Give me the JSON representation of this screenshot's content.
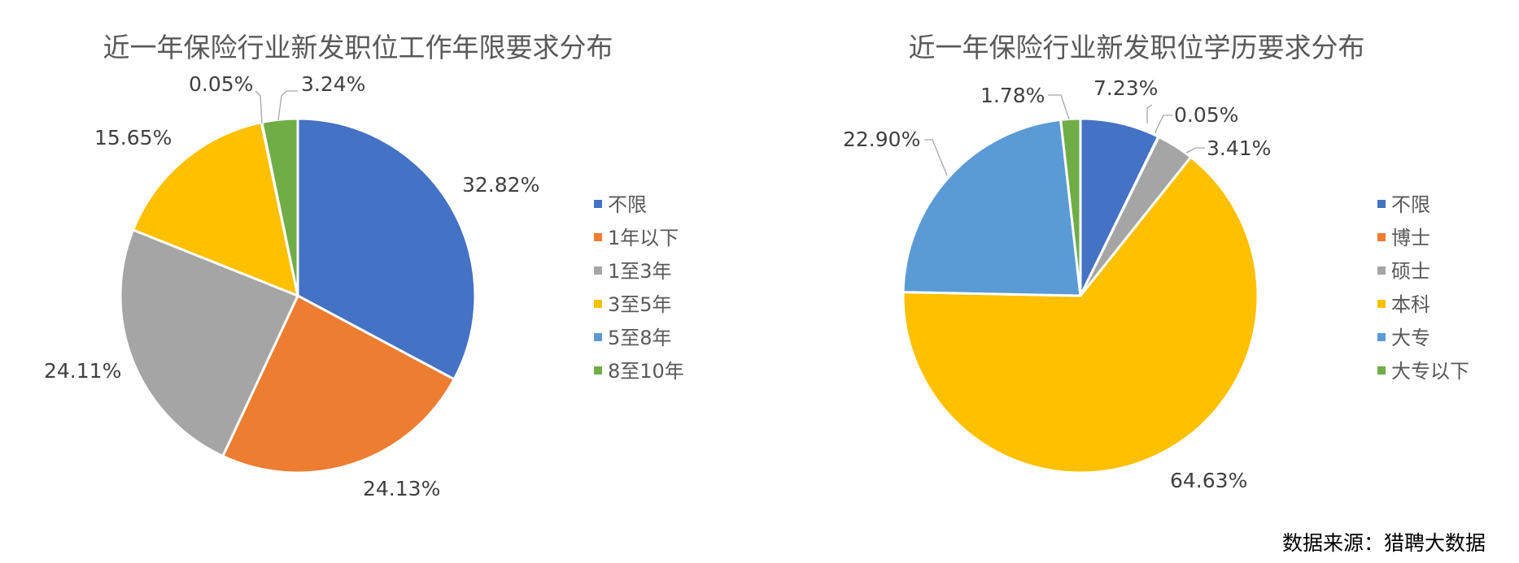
{
  "chart_data": [
    {
      "type": "pie",
      "title": "近一年保险行业新发职位工作年限要求分布",
      "categories": [
        "不限",
        "1年以下",
        "1至3年",
        "3至5年",
        "5至8年",
        "8至10年"
      ],
      "values": [
        32.82,
        24.13,
        24.11,
        15.65,
        0.05,
        3.24
      ],
      "data_labels": [
        "32.82%",
        "24.13%",
        "24.11%",
        "15.65%",
        "0.05%",
        "3.24%"
      ],
      "colors": [
        "#4472C4",
        "#ED7D31",
        "#A5A5A5",
        "#FFC000",
        "#5B9BD5",
        "#70AD47"
      ],
      "start_angle_deg": 0,
      "direction": "clockwise",
      "legend_position": "right"
    },
    {
      "type": "pie",
      "title": "近一年保险行业新发职位学历要求分布",
      "categories": [
        "不限",
        "博士",
        "硕士",
        "本科",
        "大专",
        "大专以下"
      ],
      "values": [
        7.23,
        0.05,
        3.41,
        64.63,
        22.9,
        1.78
      ],
      "data_labels": [
        "7.23%",
        "0.05%",
        "3.41%",
        "64.63%",
        "22.90%",
        "1.78%"
      ],
      "colors": [
        "#4472C4",
        "#ED7D31",
        "#A5A5A5",
        "#FFC000",
        "#5B9BD5",
        "#70AD47"
      ],
      "start_angle_deg": 0,
      "direction": "clockwise",
      "legend_position": "right"
    }
  ],
  "source": "数据来源：猎聘大数据"
}
